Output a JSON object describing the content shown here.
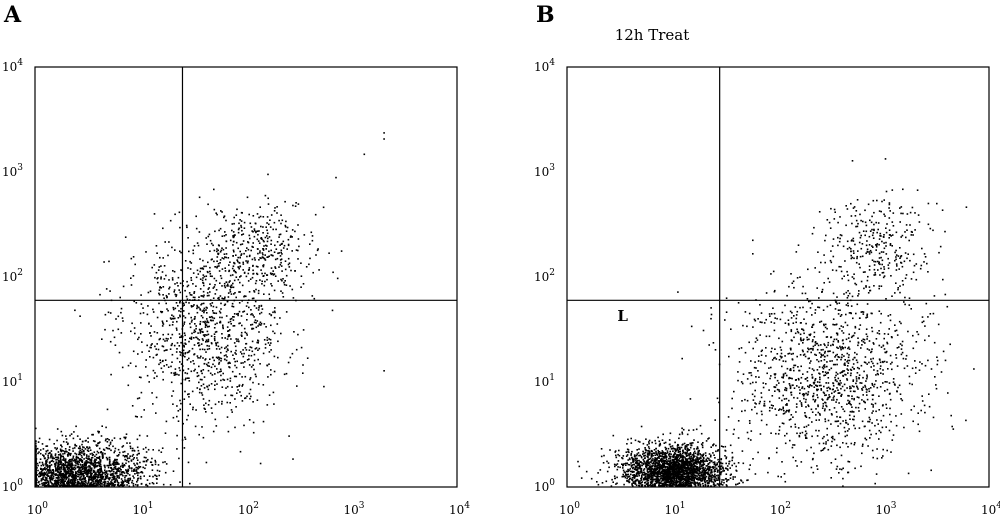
{
  "chart_data": [
    {
      "type": "scatter",
      "panel_label": "A",
      "title": "",
      "xscale": "log",
      "yscale": "log",
      "xlim": [
        1,
        10000
      ],
      "ylim": [
        1,
        10000
      ],
      "xticks": [
        {
          "base": "10",
          "exp": "0"
        },
        {
          "base": "10",
          "exp": "1"
        },
        {
          "base": "10",
          "exp": "2"
        },
        {
          "base": "10",
          "exp": "3"
        },
        {
          "base": "10",
          "exp": "4"
        }
      ],
      "yticks": [
        {
          "base": "10",
          "exp": "0"
        },
        {
          "base": "10",
          "exp": "1"
        },
        {
          "base": "10",
          "exp": "2"
        },
        {
          "base": "10",
          "exp": "3"
        },
        {
          "base": "10",
          "exp": "4"
        }
      ],
      "quadrant_gate": {
        "x": 25,
        "y": 60
      },
      "annotations": [],
      "populations": [
        {
          "name": "dense",
          "count": 2600,
          "cx": 2.6,
          "cy": 1.25,
          "sx": 0.32,
          "sy": 0.16
        },
        {
          "name": "diffuse",
          "count": 1100,
          "cx": 40,
          "cy": 30,
          "sx": 0.38,
          "sy": 0.45
        },
        {
          "name": "upper",
          "count": 380,
          "cx": 120,
          "cy": 180,
          "sx": 0.28,
          "sy": 0.22
        }
      ],
      "outliers": [
        [
          1300,
          1500
        ],
        [
          2000,
          2400
        ],
        [
          2000,
          2100
        ],
        [
          2000,
          13
        ],
        [
          700,
          900
        ]
      ]
    },
    {
      "type": "scatter",
      "panel_label": "B",
      "title": "12h Treat",
      "xscale": "log",
      "yscale": "log",
      "xlim": [
        1,
        10000
      ],
      "ylim": [
        1,
        10000
      ],
      "xticks": [
        {
          "base": "10",
          "exp": "0"
        },
        {
          "base": "10",
          "exp": "1"
        },
        {
          "base": "10",
          "exp": "2"
        },
        {
          "base": "10",
          "exp": "3"
        },
        {
          "base": "10",
          "exp": "4"
        }
      ],
      "yticks": [
        {
          "base": "10",
          "exp": "0"
        },
        {
          "base": "10",
          "exp": "1"
        },
        {
          "base": "10",
          "exp": "2"
        },
        {
          "base": "10",
          "exp": "3"
        },
        {
          "base": "10",
          "exp": "4"
        }
      ],
      "quadrant_gate": {
        "x": 28,
        "y": 60
      },
      "annotations": [
        {
          "text": "L",
          "x": 3,
          "y": 38
        }
      ],
      "populations": [
        {
          "name": "dense",
          "count": 2600,
          "cx": 10,
          "cy": 1.4,
          "sx": 0.24,
          "sy": 0.13
        },
        {
          "name": "diffuse",
          "count": 1300,
          "cx": 300,
          "cy": 12,
          "sx": 0.45,
          "sy": 0.45
        },
        {
          "name": "upper",
          "count": 300,
          "cx": 900,
          "cy": 200,
          "sx": 0.25,
          "sy": 0.25
        }
      ],
      "outliers": [
        [
          380,
          380
        ],
        [
          500,
          1300
        ],
        [
          6000,
          470
        ],
        [
          250,
          140
        ],
        [
          4000,
          8
        ]
      ]
    }
  ]
}
